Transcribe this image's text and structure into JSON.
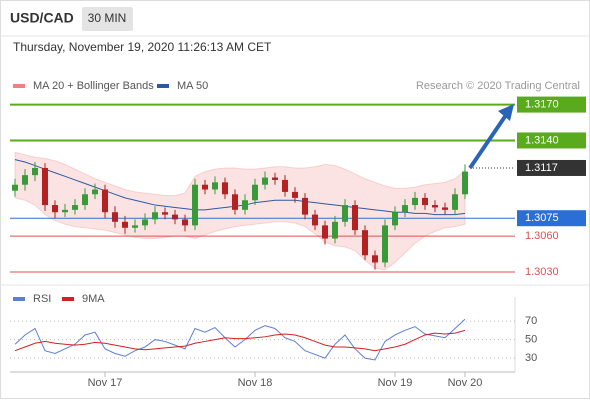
{
  "header": {
    "symbol": "USD/CAD",
    "interval": "30 MIN",
    "timestamp": "Thursday, November 19, 2020 11:26:13 AM CET",
    "credit": "Research © 2020 Trading Central"
  },
  "chart_data": [
    {
      "type": "candlestick",
      "categories": [
        null,
        null,
        null,
        null,
        null,
        null,
        null,
        null,
        null,
        "Nov 17",
        null,
        null,
        null,
        null,
        null,
        null,
        null,
        null,
        null,
        null,
        null,
        null,
        null,
        null,
        "Nov 18",
        null,
        null,
        null,
        null,
        null,
        null,
        null,
        null,
        null,
        null,
        null,
        null,
        null,
        "Nov 19",
        null,
        null,
        null,
        null,
        null,
        null,
        "Nov 20"
      ],
      "open": [
        1.3098,
        1.3103,
        1.3111,
        1.3117,
        1.3086,
        1.308,
        1.3082,
        1.3086,
        1.3095,
        1.3099,
        1.308,
        1.3072,
        1.3067,
        1.3069,
        1.3074,
        1.308,
        1.3078,
        1.3074,
        1.3069,
        1.3103,
        1.3099,
        1.3105,
        1.3095,
        1.3082,
        1.309,
        1.3103,
        1.3109,
        1.3107,
        1.3097,
        1.3092,
        1.3078,
        1.3069,
        1.3058,
        1.3072,
        1.3086,
        1.3065,
        1.3044,
        1.3038,
        1.3069,
        1.308,
        1.3086,
        1.3092,
        1.3086,
        1.3084,
        1.3082,
        1.3095
      ],
      "high": [
        1.3108,
        1.3116,
        1.3122,
        1.3121,
        1.309,
        1.3087,
        1.3091,
        1.31,
        1.3104,
        1.3103,
        1.3085,
        1.3077,
        1.3074,
        1.3079,
        1.3085,
        1.3084,
        1.3082,
        1.3078,
        1.3108,
        1.3107,
        1.311,
        1.3109,
        1.3099,
        1.3095,
        1.3108,
        1.3114,
        1.3113,
        1.3111,
        1.3101,
        1.3096,
        1.3082,
        1.3073,
        1.3077,
        1.3091,
        1.309,
        1.3069,
        1.3048,
        1.3074,
        1.3085,
        1.3091,
        1.3097,
        1.3096,
        1.309,
        1.3088,
        1.31,
        1.312
      ],
      "low": [
        1.3093,
        1.3098,
        1.3106,
        1.3081,
        1.3075,
        1.3076,
        1.3078,
        1.3082,
        1.3091,
        1.3075,
        1.3067,
        1.3062,
        1.3063,
        1.3065,
        1.307,
        1.3074,
        1.307,
        1.3064,
        1.3065,
        1.3095,
        1.3095,
        1.3091,
        1.3078,
        1.3078,
        1.3086,
        1.3099,
        1.3103,
        1.3093,
        1.3088,
        1.3074,
        1.3065,
        1.3053,
        1.3054,
        1.3068,
        1.3061,
        1.304,
        1.3032,
        1.3034,
        1.3065,
        1.3076,
        1.3082,
        1.3082,
        1.308,
        1.3078,
        1.3078,
        1.3091
      ],
      "close": [
        1.3103,
        1.3111,
        1.3117,
        1.3086,
        1.308,
        1.3082,
        1.3086,
        1.3095,
        1.3099,
        1.308,
        1.3072,
        1.3067,
        1.3069,
        1.3074,
        1.308,
        1.3078,
        1.3074,
        1.3069,
        1.3103,
        1.3099,
        1.3105,
        1.3095,
        1.3082,
        1.309,
        1.3103,
        1.3109,
        1.3107,
        1.3097,
        1.3092,
        1.3078,
        1.3069,
        1.3058,
        1.3072,
        1.3086,
        1.3065,
        1.3044,
        1.3038,
        1.3069,
        1.308,
        1.3086,
        1.3092,
        1.3086,
        1.3084,
        1.3082,
        1.3095,
        1.3114
      ],
      "up_color": "#3a9a3a",
      "down_color": "#b22222",
      "series": [
        {
          "name": "MA 20 + Bollinger Bands",
          "color": "#f08080",
          "upper": [
            1.313,
            1.3128,
            1.3126,
            1.3125,
            1.3123,
            1.312,
            1.3116,
            1.3112,
            1.3108,
            1.3105,
            1.3102,
            1.3099,
            1.3097,
            1.3096,
            1.3095,
            1.3094,
            1.3094,
            1.3096,
            1.311,
            1.3114,
            1.3116,
            1.3117,
            1.3117,
            1.3116,
            1.3116,
            1.3117,
            1.3118,
            1.3118,
            1.3117,
            1.3117,
            1.3118,
            1.312,
            1.3119,
            1.3116,
            1.3112,
            1.3108,
            1.3105,
            1.3102,
            1.31,
            1.31,
            1.3101,
            1.3103,
            1.3104,
            1.3105,
            1.3108,
            1.3115
          ],
          "lower": [
            1.3092,
            1.309,
            1.3086,
            1.3078,
            1.3073,
            1.307,
            1.3068,
            1.3067,
            1.3066,
            1.3065,
            1.3063,
            1.3061,
            1.3059,
            1.3058,
            1.3058,
            1.3059,
            1.306,
            1.306,
            1.3058,
            1.3061,
            1.3064,
            1.3066,
            1.3068,
            1.3069,
            1.307,
            1.3071,
            1.3072,
            1.3072,
            1.3071,
            1.3068,
            1.3062,
            1.3055,
            1.3052,
            1.3051,
            1.3048,
            1.304,
            1.3033,
            1.3032,
            1.3038,
            1.3046,
            1.3054,
            1.306,
            1.3064,
            1.3067,
            1.3068,
            1.307
          ]
        },
        {
          "name": "MA 50",
          "color": "#2c5aa0",
          "values": [
            1.3124,
            1.3122,
            1.3119,
            1.3116,
            1.3113,
            1.311,
            1.3107,
            1.3104,
            1.3101,
            1.3098,
            1.3095,
            1.3092,
            1.309,
            1.3088,
            1.3086,
            1.3085,
            1.3084,
            1.3083,
            1.3082,
            1.3082,
            1.3083,
            1.3084,
            1.3085,
            1.3086,
            1.3088,
            1.3089,
            1.309,
            1.309,
            1.309,
            1.3089,
            1.3088,
            1.3087,
            1.3086,
            1.3085,
            1.3084,
            1.3083,
            1.3082,
            1.3081,
            1.308,
            1.308,
            1.3079,
            1.3079,
            1.3078,
            1.3078,
            1.3078,
            1.3079
          ]
        }
      ],
      "levels": [
        {
          "value": 1.317,
          "label": "1.3170",
          "kind": "box",
          "color": "#5aaa1e"
        },
        {
          "value": 1.314,
          "label": "1.3140",
          "kind": "box",
          "color": "#5aaa1e"
        },
        {
          "value": 1.3117,
          "kind": "current",
          "color": "#333333"
        },
        {
          "value": 1.3075,
          "kind": "box",
          "color": "#2a6fd6"
        },
        {
          "value": 1.306,
          "label": "1.3060",
          "kind": "text",
          "color": "#d9534f"
        },
        {
          "value": 1.303,
          "label": "1.3030",
          "kind": "text",
          "color": "#d9534f"
        }
      ],
      "ylim": [
        1.302,
        1.3178
      ]
    },
    {
      "type": "line",
      "series": [
        {
          "name": "RSI",
          "color": "#5b7fd6",
          "values": [
            45,
            55,
            62,
            38,
            35,
            40,
            45,
            55,
            58,
            40,
            35,
            32,
            38,
            42,
            50,
            48,
            44,
            40,
            62,
            58,
            63,
            52,
            42,
            50,
            60,
            65,
            62,
            52,
            48,
            38,
            34,
            30,
            45,
            55,
            40,
            30,
            28,
            48,
            55,
            60,
            64,
            56,
            54,
            52,
            62,
            72
          ]
        },
        {
          "name": "9MA",
          "color": "#d62020",
          "values": [
            38,
            42,
            46,
            48,
            46,
            45,
            44,
            45,
            47,
            46,
            44,
            42,
            40,
            39,
            40,
            41,
            42,
            43,
            46,
            48,
            50,
            52,
            51,
            51,
            52,
            53,
            55,
            56,
            55,
            52,
            48,
            44,
            42,
            42,
            41,
            40,
            38,
            40,
            42,
            45,
            50,
            55,
            57,
            56,
            57,
            60
          ]
        }
      ],
      "ylim": [
        15,
        96
      ],
      "yticks": [
        30,
        50,
        70
      ]
    }
  ]
}
